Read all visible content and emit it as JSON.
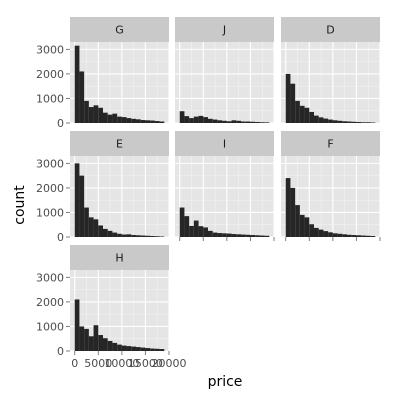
{
  "chart_data": {
    "type": "bar",
    "subtype": "faceted-histogram",
    "xlabel": "price",
    "ylabel": "count",
    "xlim": [
      -1000,
      20000
    ],
    "ylim": [
      0,
      3300
    ],
    "x_ticks": [
      0,
      5000,
      10000,
      15000,
      20000
    ],
    "x_tick_labels": [
      "0",
      "5000",
      "10000",
      "15000",
      "20000"
    ],
    "y_ticks": [
      0,
      1000,
      2000,
      3000
    ],
    "y_tick_labels": [
      "0",
      "1000",
      "2000",
      "3000"
    ],
    "grid": true,
    "bin_width": 1000,
    "bin_starts": [
      0,
      1000,
      2000,
      3000,
      4000,
      5000,
      6000,
      7000,
      8000,
      9000,
      10000,
      11000,
      12000,
      13000,
      14000,
      15000,
      16000,
      17000,
      18000
    ],
    "facets": [
      {
        "label": "G",
        "values": [
          3150,
          2100,
          900,
          650,
          720,
          620,
          420,
          340,
          380,
          260,
          240,
          200,
          170,
          150,
          120,
          110,
          100,
          80,
          60
        ]
      },
      {
        "label": "J",
        "values": [
          480,
          280,
          200,
          260,
          290,
          240,
          170,
          140,
          110,
          90,
          70,
          110,
          90,
          60,
          60,
          50,
          40,
          30,
          25
        ]
      },
      {
        "label": "D",
        "values": [
          2000,
          1600,
          900,
          700,
          620,
          450,
          300,
          230,
          180,
          140,
          110,
          90,
          70,
          60,
          50,
          40,
          30,
          30,
          20
        ]
      },
      {
        "label": "E",
        "values": [
          3000,
          2500,
          1200,
          800,
          720,
          470,
          330,
          250,
          180,
          130,
          100,
          110,
          80,
          70,
          60,
          50,
          40,
          30,
          20
        ]
      },
      {
        "label": "I",
        "values": [
          1200,
          850,
          450,
          670,
          440,
          390,
          250,
          180,
          160,
          150,
          140,
          120,
          110,
          100,
          90,
          80,
          70,
          60,
          50
        ]
      },
      {
        "label": "F",
        "values": [
          2400,
          2000,
          1300,
          900,
          800,
          520,
          370,
          300,
          240,
          190,
          150,
          130,
          110,
          90,
          80,
          70,
          60,
          50,
          40
        ]
      },
      {
        "label": "H",
        "values": [
          2100,
          1000,
          900,
          600,
          1050,
          650,
          520,
          410,
          330,
          260,
          220,
          200,
          180,
          160,
          140,
          120,
          100,
          90,
          80
        ]
      }
    ],
    "colors": {
      "panel_background": "#e5e5e5",
      "gridline_major": "#ffffff",
      "gridline_minor": "#f2f2f2",
      "strip_background": "#c9c9c9",
      "bar_fill": "#262626",
      "tick_mark": "#7f7f7f"
    }
  }
}
